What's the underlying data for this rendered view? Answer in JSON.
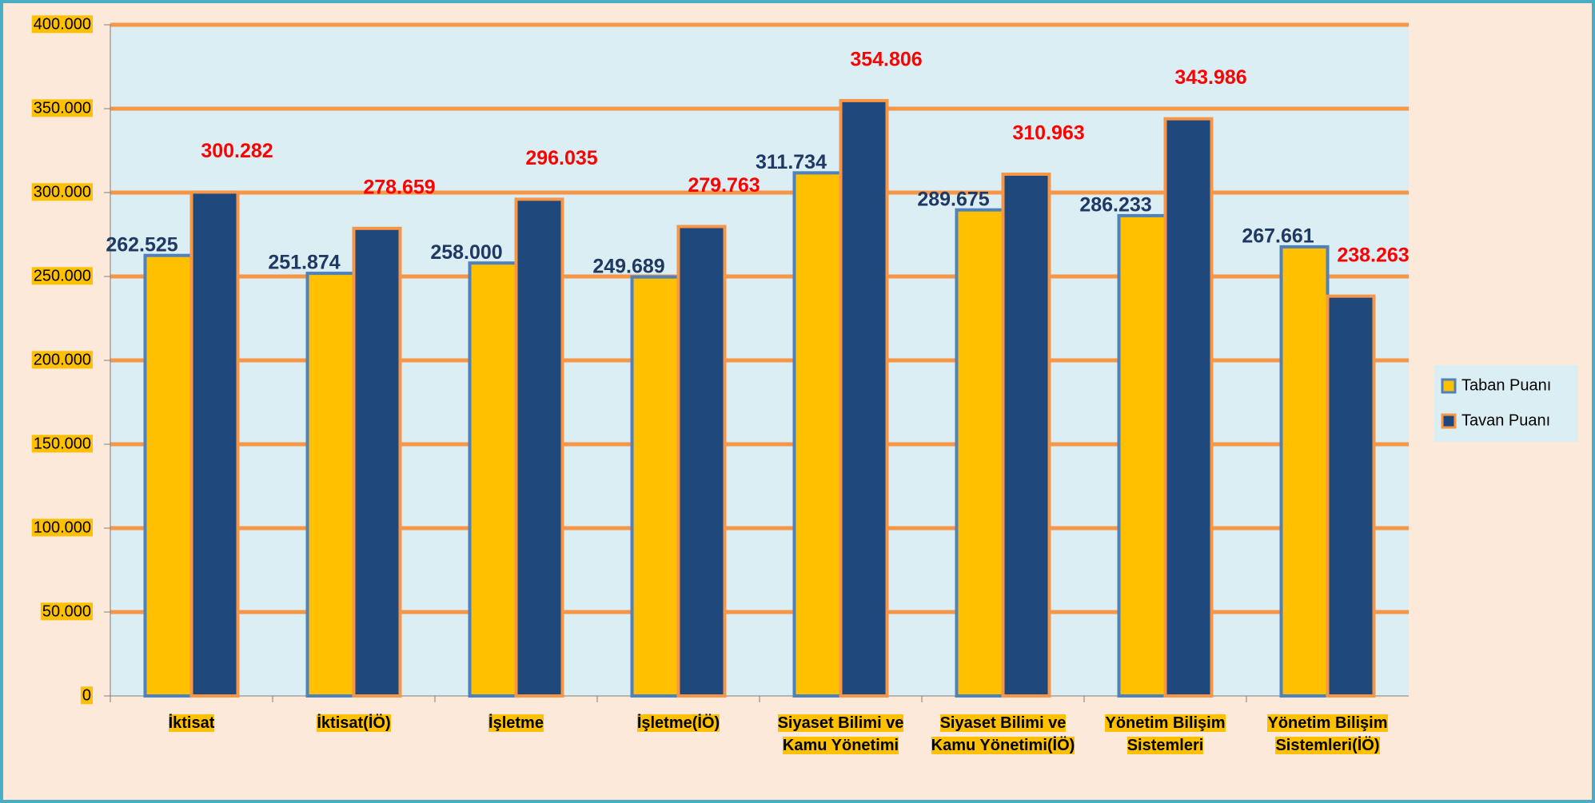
{
  "chart_data": {
    "type": "bar",
    "categories": [
      "İktisat",
      "İktisat(İÖ)",
      "İşletme",
      "İşletme(İÖ)",
      "Siyaset Bilimi ve Kamu Yönetimi",
      "Siyaset Bilimi ve Kamu Yönetimi(İÖ)",
      "Yönetim Bilişim Sistemleri",
      "Yönetim Bilişim Sistemleri(İÖ)"
    ],
    "series": [
      {
        "name": "Taban Puanı",
        "color": "#FFC000",
        "border": "#4F81BD",
        "label_color": "#1F3864",
        "values": [
          262.525,
          251.874,
          258,
          249.689,
          311.734,
          289.675,
          286.233,
          267.661
        ],
        "value_labels": [
          "262.525",
          "251.874",
          "258.000",
          "249.689",
          "311.734",
          "289.675",
          "286.233",
          "267.661"
        ]
      },
      {
        "name": "Tavan Puanı",
        "color": "#1F497D",
        "border": "#F79646",
        "label_color": "#FF0000",
        "values": [
          300.282,
          278.659,
          296.035,
          279.763,
          354.806,
          310.963,
          343.986,
          238.263
        ],
        "value_labels": [
          "300.282",
          "278.659",
          "296.035",
          "279.763",
          "354.806",
          "310.963",
          "343.986",
          "238.263"
        ]
      }
    ],
    "ylim": [
      0,
      400
    ],
    "yticks": [
      0,
      {
        "value": 50,
        "label": "50.000"
      },
      {
        "value": 100,
        "label": "100.000"
      },
      {
        "value": 150,
        "label": "150.000"
      },
      {
        "value": 200,
        "label": "200.000"
      },
      {
        "value": 250,
        "label": "250.000"
      },
      {
        "value": 300,
        "label": "300.000"
      },
      {
        "value": 350,
        "label": "350.000"
      },
      {
        "value": 400,
        "label": "400.000"
      }
    ],
    "grid": true,
    "legend": "right"
  }
}
